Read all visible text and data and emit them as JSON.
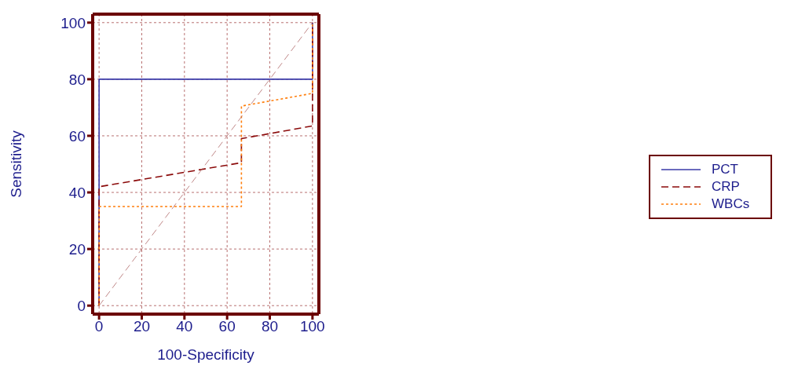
{
  "chart_data": {
    "type": "line",
    "xlabel": "100-Specificity",
    "ylabel": "Sensitivity",
    "xlim": [
      -3,
      103
    ],
    "ylim": [
      -3,
      103
    ],
    "xticks": [
      0,
      20,
      40,
      60,
      80,
      100
    ],
    "yticks": [
      0,
      20,
      40,
      60,
      80,
      100
    ],
    "grid": true,
    "legend": "right",
    "marker": "none",
    "series": [
      {
        "name": "PCT",
        "color": "#3a3aa8",
        "line_style": "solid",
        "x": [
          0,
          0,
          100,
          100
        ],
        "values": [
          0,
          80,
          80,
          100
        ]
      },
      {
        "name": "CRP",
        "color": "#8b0a0a",
        "line_style": "dashed",
        "x": [
          0,
          0,
          66.7,
          66.7,
          100,
          100
        ],
        "values": [
          0,
          42,
          50.5,
          59,
          63.5,
          100
        ]
      },
      {
        "name": "WBCs",
        "color": "#ff7f0e",
        "line_style": "dotted",
        "x": [
          0,
          0,
          66.7,
          66.7,
          100,
          100
        ],
        "values": [
          0,
          35,
          35,
          70.5,
          75,
          100
        ]
      },
      {
        "color": "#b06a6a",
        "line_style": "dashed",
        "x": [
          0,
          100
        ],
        "values": [
          0,
          100
        ]
      }
    ]
  }
}
